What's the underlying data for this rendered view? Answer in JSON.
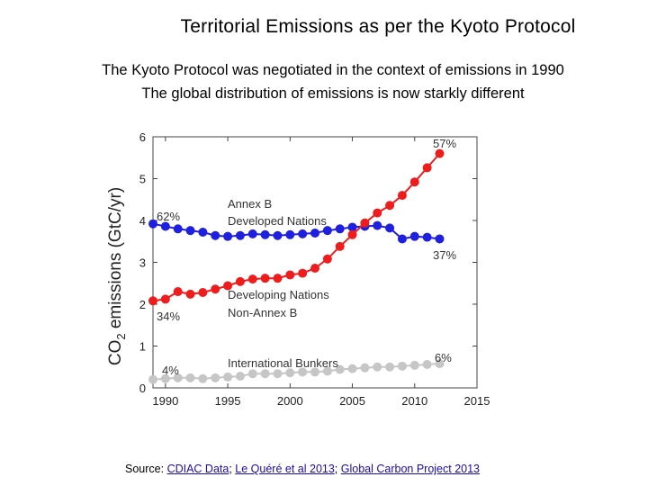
{
  "header": {
    "title": "Territorial Emissions as per the Kyoto Protocol",
    "subtitle_1": "The Kyoto Protocol was negotiated in the context of emissions in 1990",
    "subtitle_2": "The global distribution of emissions is now starkly different"
  },
  "source": {
    "prefix": "Source: ",
    "links": [
      "CDIAC Data",
      "Le Quéré et al 2013",
      "Global Carbon Project 2013"
    ],
    "separator": "; "
  },
  "chart_data": {
    "type": "line",
    "ylabel_main": "CO",
    "ylabel_sub": "2",
    "ylabel_rest": " emissions (GtC/yr)",
    "xlim": [
      1989,
      2015
    ],
    "ylim": [
      0,
      6
    ],
    "xticks": [
      1990,
      1995,
      2000,
      2005,
      2010,
      2015
    ],
    "yticks": [
      0,
      1,
      2,
      3,
      4,
      5,
      6
    ],
    "grid": false,
    "x": [
      1989,
      1990,
      1991,
      1992,
      1993,
      1994,
      1995,
      1996,
      1997,
      1998,
      1999,
      2000,
      2001,
      2002,
      2003,
      2004,
      2005,
      2006,
      2007,
      2008,
      2009,
      2010,
      2011,
      2012
    ],
    "series": [
      {
        "name": "Annex B Developed Nations",
        "color": "#1f1fe0",
        "values": [
          3.92,
          3.86,
          3.8,
          3.76,
          3.72,
          3.64,
          3.62,
          3.64,
          3.68,
          3.66,
          3.64,
          3.66,
          3.68,
          3.7,
          3.76,
          3.8,
          3.84,
          3.86,
          3.88,
          3.82,
          3.56,
          3.62,
          3.6,
          3.56
        ]
      },
      {
        "name": "Developing Nations Non-Annex B",
        "color": "#ee1c1c",
        "values": [
          2.08,
          2.12,
          2.3,
          2.24,
          2.28,
          2.36,
          2.44,
          2.54,
          2.6,
          2.62,
          2.62,
          2.7,
          2.74,
          2.86,
          3.08,
          3.38,
          3.66,
          3.94,
          4.18,
          4.36,
          4.6,
          4.92,
          5.26,
          5.6
        ]
      },
      {
        "name": "International Bunkers",
        "color": "#c6c6c6",
        "values": [
          0.2,
          0.22,
          0.24,
          0.24,
          0.22,
          0.24,
          0.26,
          0.28,
          0.34,
          0.34,
          0.34,
          0.36,
          0.38,
          0.38,
          0.4,
          0.44,
          0.46,
          0.48,
          0.5,
          0.5,
          0.52,
          0.54,
          0.56,
          0.58
        ]
      }
    ],
    "annotations": {
      "annex_line1": "Annex B",
      "annex_line2": "Developed Nations",
      "annex_start_pct": "62%",
      "annex_end_pct": "37%",
      "dev_line1": "Developing Nations",
      "dev_line2": "Non-Annex B",
      "dev_start_pct": "34%",
      "dev_end_pct": "57%",
      "bunkers_label": "International Bunkers",
      "bunkers_start_pct": "4%",
      "bunkers_end_pct": "6%"
    }
  }
}
